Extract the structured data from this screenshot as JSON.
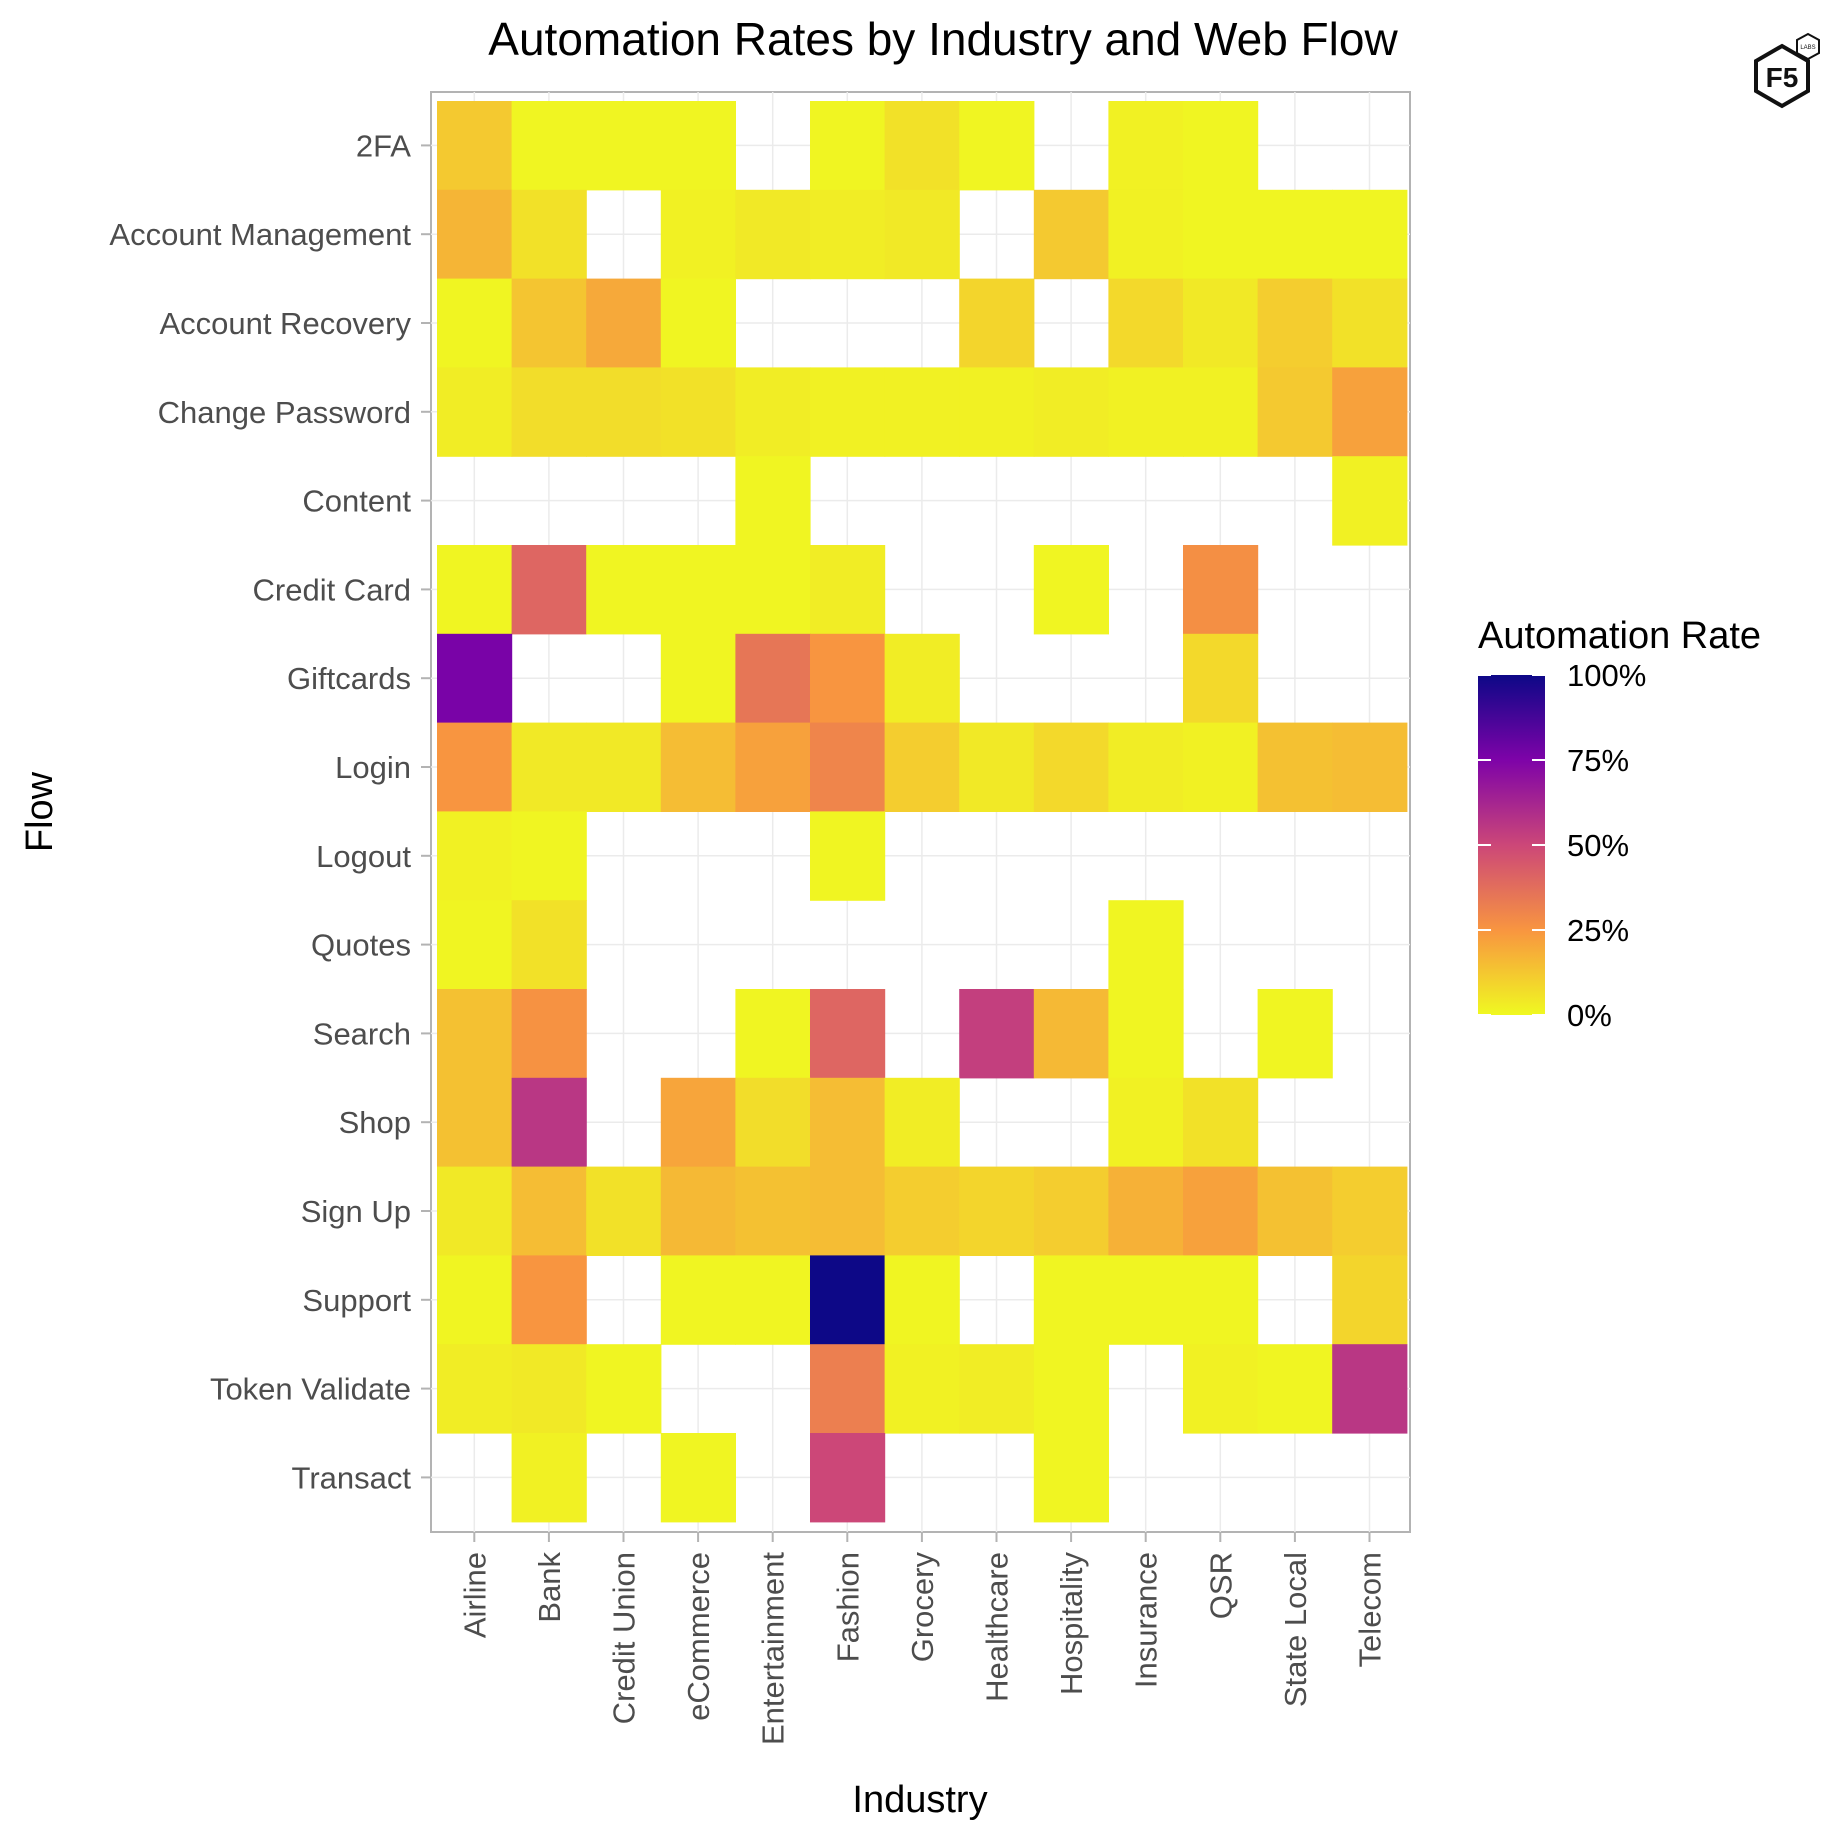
{
  "chart_data": {
    "type": "heatmap",
    "title": "Automation Rates by Industry and Web Flow",
    "xlabel": "Industry",
    "ylabel": "Flow",
    "x_categories": [
      "Airline",
      "Bank",
      "Credit Union",
      "eCommerce",
      "Entertainment",
      "Fashion",
      "Grocery",
      "Healthcare",
      "Hospitality",
      "Insurance",
      "QSR",
      "State Local",
      "Telecom"
    ],
    "y_categories": [
      "2FA",
      "Account Management",
      "Account Recovery",
      "Change Password",
      "Content",
      "Credit Card",
      "Giftcards",
      "Login",
      "Logout",
      "Quotes",
      "Search",
      "Shop",
      "Sign Up",
      "Support",
      "Token Validate",
      "Transact"
    ],
    "values": [
      [
        12,
        1,
        1,
        1,
        null,
        1,
        6,
        1,
        null,
        2,
        1,
        null,
        null
      ],
      [
        17,
        6,
        null,
        2,
        4,
        3,
        4,
        null,
        12,
        2,
        1,
        1,
        1
      ],
      [
        1,
        13,
        20,
        1,
        null,
        null,
        null,
        9,
        null,
        8,
        4,
        11,
        6
      ],
      [
        3,
        7,
        7,
        6,
        3,
        2,
        2,
        2,
        3,
        2,
        2,
        12,
        22
      ],
      [
        null,
        null,
        null,
        null,
        1,
        null,
        null,
        null,
        null,
        null,
        null,
        null,
        2
      ],
      [
        1,
        40,
        1,
        1,
        1,
        3,
        null,
        null,
        1,
        null,
        27,
        null,
        null
      ],
      [
        76,
        null,
        null,
        1,
        35,
        25,
        3,
        null,
        null,
        null,
        8,
        null,
        null
      ],
      [
        25,
        4,
        4,
        15,
        22,
        30,
        11,
        4,
        8,
        3,
        2,
        14,
        15
      ],
      [
        2,
        1,
        null,
        null,
        null,
        1,
        null,
        null,
        null,
        null,
        null,
        null,
        null
      ],
      [
        1,
        6,
        null,
        null,
        null,
        null,
        null,
        null,
        null,
        1,
        null,
        null,
        null
      ],
      [
        14,
        26,
        null,
        null,
        1,
        40,
        null,
        53,
        16,
        1,
        null,
        1,
        null
      ],
      [
        14,
        56,
        null,
        21,
        7,
        15,
        3,
        null,
        null,
        2,
        6,
        null,
        null
      ],
      [
        4,
        15,
        6,
        16,
        14,
        15,
        11,
        9,
        11,
        18,
        22,
        14,
        11
      ],
      [
        1,
        25,
        null,
        1,
        1,
        100,
        1,
        null,
        1,
        1,
        1,
        null,
        9
      ],
      [
        3,
        4,
        1,
        null,
        null,
        32,
        2,
        3,
        1,
        null,
        2,
        1,
        56
      ],
      [
        null,
        2,
        null,
        1,
        null,
        50,
        null,
        null,
        1,
        null,
        null,
        null,
        null
      ]
    ],
    "value_range": [
      0,
      100
    ],
    "grid": true,
    "legend": {
      "title": "Automation Rate",
      "placement": "right",
      "labels": [
        "100%",
        "75%",
        "50%",
        "25%",
        "0%"
      ],
      "label_values": [
        100,
        75,
        50,
        25,
        0
      ]
    },
    "colormap": "plasma",
    "colormap_stops": [
      "#f0f921",
      "#f89540",
      "#cc4778",
      "#7e03a8",
      "#0d0887"
    ]
  },
  "logo": {
    "text": "F5",
    "badge": "LABS"
  }
}
